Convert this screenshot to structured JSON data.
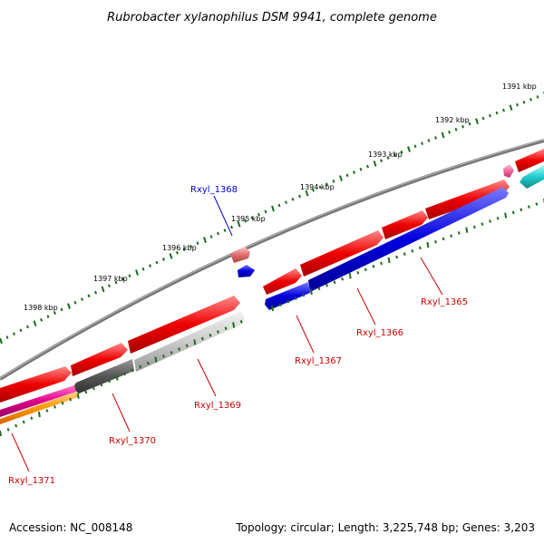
{
  "title": "Rubrobacter xylanophilus DSM 9941, complete genome",
  "accession": "Accession: NC_008148",
  "topology": "Topology: circular; Length: 3,225,748 bp; Genes: 3,203",
  "scale_labels": [
    "1391 kbp",
    "1392 kbp",
    "1393 kbp",
    "1394 kbp",
    "1395 kbp",
    "1396 kbp",
    "1397 kbp",
    "1398 kbp"
  ],
  "gene_labels": {
    "g1365": "Rxyl_1365",
    "g1366": "Rxyl_1366",
    "g1367": "Rxyl_1367",
    "g1368": "Rxyl_1368",
    "g1369": "Rxyl_1369",
    "g1370": "Rxyl_1370",
    "g1371": "Rxyl_1371"
  },
  "colors": {
    "red": "#ee0000",
    "blue": "#0000dd",
    "grey": "#888888",
    "light_grey": "#cccccc",
    "dark_grey": "#555555",
    "pink": "#f06aa0",
    "magenta": "#e0008a",
    "orange": "#ff9900",
    "cyan": "#22cccc",
    "tick_green": "#1a6e1a",
    "label_red": "#cc0000",
    "label_blue": "#0000cc"
  }
}
